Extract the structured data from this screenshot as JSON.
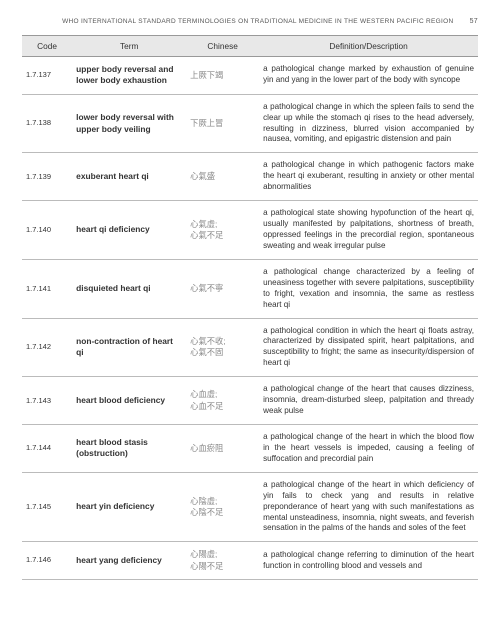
{
  "header": {
    "title": "WHO INTERNATIONAL STANDARD TERMINOLOGIES ON TRADITIONAL MEDICINE IN THE WESTERN PACIFIC REGION",
    "page": "57"
  },
  "columns": [
    "Code",
    "Term",
    "Chinese",
    "Definition/Description"
  ],
  "rows": [
    {
      "code": "1.7.137",
      "term": "upper body reversal and lower body exhaustion",
      "chinese": "上厥下竭",
      "def": "a pathological change marked by exhaustion of genuine yin and yang in the lower part of the body with syncope"
    },
    {
      "code": "1.7.138",
      "term": "lower body reversal with upper body veiling",
      "chinese": "下厥上冒",
      "def": "a pathological change in which the spleen fails to send the clear up while the stomach qi rises to the head adversely, resulting in dizziness, blurred vision accompanied by nausea, vomiting, and epigastric distension and pain"
    },
    {
      "code": "1.7.139",
      "term": "exuberant heart qi",
      "chinese": "心氣盛",
      "def": "a pathological change in which pathogenic factors make the heart qi exuberant, resulting in anxiety or other mental abnormalities"
    },
    {
      "code": "1.7.140",
      "term": "heart qi deficiency",
      "chinese": "心氣虛; 心氣不足",
      "def": "a pathological state showing hypofunction of the heart qi, usually manifested by palpitations, shortness of breath, oppressed feelings in the precordial region, spontaneous sweating and weak irregular pulse"
    },
    {
      "code": "1.7.141",
      "term": "disquieted heart qi",
      "chinese": "心氣不寧",
      "def": "a pathological change characterized by a feeling of uneasiness together with severe palpitations, susceptibility to fright, vexation and insomnia, the same as restless heart qi"
    },
    {
      "code": "1.7.142",
      "term": "non-contraction of heart qi",
      "chinese": "心氣不收; 心氣不固",
      "def": "a pathological condition in which the heart qi floats astray, characterized by dissipated spirit, heart palpitations, and susceptibility to fright; the same as insecurity/dispersion of heart qi"
    },
    {
      "code": "1.7.143",
      "term": "heart blood deficiency",
      "chinese": "心血虛; 心血不足",
      "def": "a pathological change of the heart that causes dizziness, insomnia, dream-disturbed sleep, palpitation and thready weak pulse"
    },
    {
      "code": "1.7.144",
      "term": "heart blood stasis (obstruction)",
      "chinese": "心血瘀阻",
      "def": "a pathological change of the heart in which the blood flow in the heart vessels is impeded, causing a feeling of suffocation and precordial pain"
    },
    {
      "code": "1.7.145",
      "term": "heart yin deficiency",
      "chinese": "心陰虛; 心陰不足",
      "def": "a pathological change of the heart in which deficiency of yin fails to check yang and results in relative preponderance of heart yang with such manifestations as mental unsteadiness, insomnia, night sweats, and feverish sensation in the palms of the hands and soles of the feet"
    },
    {
      "code": "1.7.146",
      "term": "heart yang deficiency",
      "chinese": "心陽虛; 心陽不足",
      "def": "a pathological change referring to diminution of the heart function in controlling blood and vessels and"
    }
  ]
}
